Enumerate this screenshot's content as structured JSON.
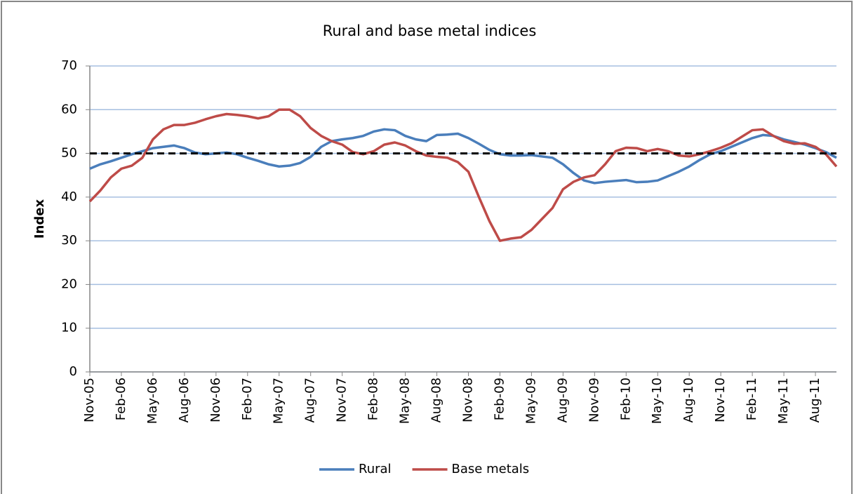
{
  "chart_data": {
    "type": "line",
    "title": "Rural and base metal indices",
    "y_label": "Index",
    "categories": [
      "Nov-05",
      null,
      null,
      "Feb-06",
      null,
      null,
      "May-06",
      null,
      null,
      "Aug-06",
      null,
      null,
      "Nov-06",
      null,
      null,
      "Feb-07",
      null,
      null,
      "May-07",
      null,
      null,
      "Aug-07",
      null,
      null,
      "Nov-07",
      null,
      null,
      "Feb-08",
      null,
      null,
      "May-08",
      null,
      null,
      "Aug-08",
      null,
      null,
      "Nov-08",
      null,
      null,
      "Feb-09",
      null,
      null,
      "May-09",
      null,
      null,
      "Aug-09",
      null,
      null,
      "Nov-09",
      null,
      null,
      "Feb-10",
      null,
      null,
      "May-10",
      null,
      null,
      "Aug-10",
      null,
      null,
      "Nov-10",
      null,
      null,
      "Feb-11",
      null,
      null,
      "May-11",
      null,
      null,
      "Aug-11",
      null,
      null
    ],
    "series": [
      {
        "name": "Rural",
        "color": "#4a7ebb",
        "values": [
          46.5,
          47.5,
          48.2,
          49,
          49.8,
          50.5,
          51.2,
          51.5,
          51.8,
          51.2,
          50.2,
          49.8,
          50,
          50.2,
          49.8,
          49,
          48.3,
          47.5,
          47,
          47.2,
          47.8,
          49.2,
          51.5,
          52.8,
          53.2,
          53.5,
          54,
          55,
          55.5,
          55.3,
          54,
          53.2,
          52.8,
          54.2,
          54.3,
          54.5,
          53.5,
          52.2,
          50.8,
          49.8,
          49.5,
          49.5,
          49.6,
          49.3,
          49,
          47.5,
          45.5,
          43.8,
          43.2,
          43.5,
          43.7,
          43.9,
          43.4,
          43.5,
          43.8,
          44.8,
          45.8,
          47,
          48.5,
          49.8,
          50.5,
          51.5,
          52.5,
          53.5,
          54.2,
          54,
          53.2,
          52.6,
          52,
          51.2,
          50.3,
          49
        ]
      },
      {
        "name": "Base metals",
        "color": "#be4b48",
        "values": [
          39,
          41.5,
          44.5,
          46.5,
          47.2,
          49,
          53.2,
          55.5,
          56.5,
          56.5,
          57,
          57.8,
          58.5,
          59,
          58.8,
          58.5,
          58,
          58.5,
          60,
          60,
          58.5,
          55.8,
          54,
          52.8,
          52,
          50.3,
          49.8,
          50.5,
          52,
          52.5,
          51.8,
          50.5,
          49.5,
          49.2,
          49,
          48,
          45.8,
          40,
          34.5,
          30,
          30.5,
          30.8,
          32.5,
          35,
          37.5,
          41.8,
          43.5,
          44.5,
          45,
          47.5,
          50.5,
          51.3,
          51.2,
          50.5,
          51,
          50.5,
          49.5,
          49.3,
          49.8,
          50.5,
          51.3,
          52.3,
          53.8,
          55.3,
          55.5,
          54,
          52.8,
          52.2,
          52.3,
          51.5,
          49.8,
          47
        ]
      }
    ],
    "reference_line": 50,
    "ylim": [
      0,
      70
    ],
    "yticks": [
      0,
      10,
      20,
      30,
      40,
      50,
      60,
      70
    ],
    "grid": true,
    "legend": "bottom"
  }
}
